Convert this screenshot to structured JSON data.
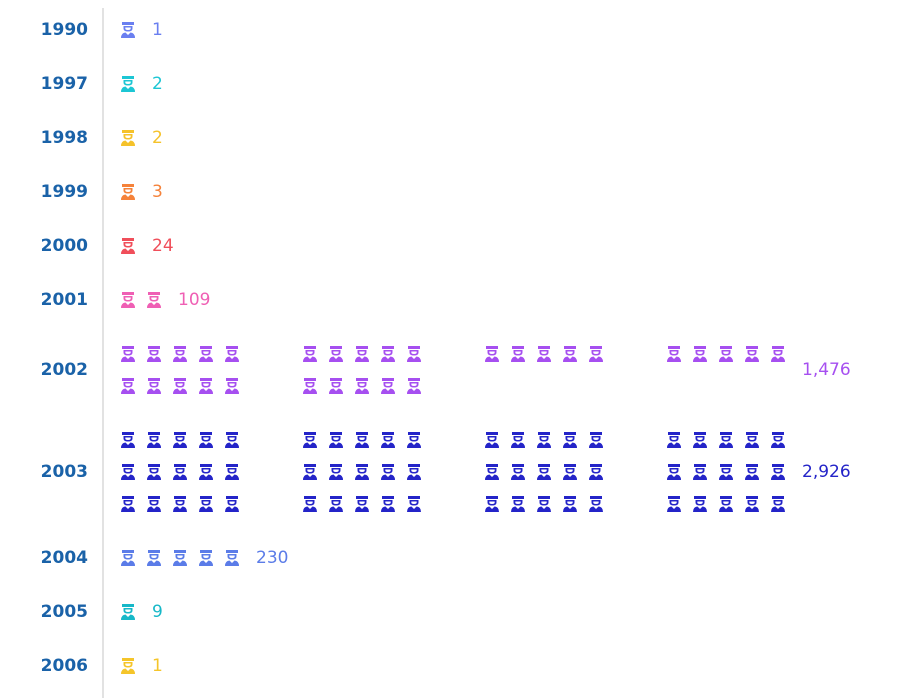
{
  "chart_data": {
    "type": "pictograph",
    "categories": [
      "1990",
      "1997",
      "1998",
      "1999",
      "2000",
      "2001",
      "2002",
      "2003",
      "2004",
      "2005",
      "2006"
    ],
    "values": [
      1,
      2,
      2,
      3,
      24,
      109,
      1476,
      2926,
      230,
      9,
      1
    ],
    "value_labels": [
      "1",
      "2",
      "2",
      "3",
      "24",
      "109",
      "1,476",
      "2,926",
      "230",
      "9",
      "1"
    ],
    "colors": [
      "#6a7ff0",
      "#1cc6d4",
      "#f5c22a",
      "#f5823a",
      "#f04e5a",
      "#ef5fb4",
      "#a64ff0",
      "#2424c8",
      "#5b7ce8",
      "#16b8c8",
      "#f5c52a"
    ]
  }
}
